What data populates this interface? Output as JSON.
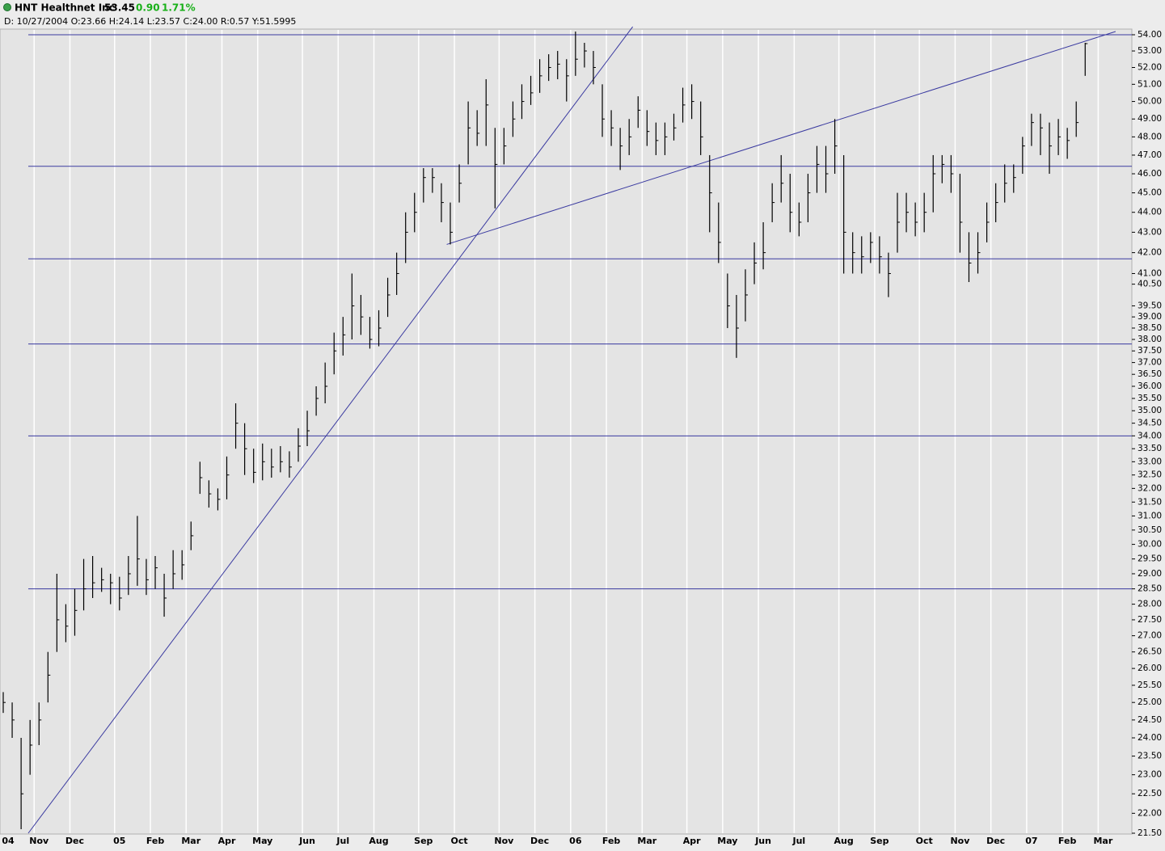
{
  "header": {
    "name": "HNT Healthnet Inc",
    "last": "53.45",
    "change": "0.90",
    "change_pct": "1.71%",
    "info": "D: 10/27/2004 O:23.66 H:24.14 L:23.57 C:24.00 R:0.57 Y:51.5995"
  },
  "chart_data": {
    "type": "ohlc",
    "log_scale": true,
    "color": "#000000",
    "line_color": "#3a3aa0",
    "grid": true,
    "categories": [
      "04",
      null,
      null,
      null,
      "Nov",
      null,
      null,
      null,
      "Dec",
      null,
      null,
      null,
      null,
      "05",
      null,
      null,
      null,
      "Feb",
      null,
      null,
      null,
      "Mar",
      null,
      null,
      null,
      "Apr",
      null,
      null,
      null,
      "May",
      null,
      null,
      null,
      null,
      "Jun",
      null,
      null,
      null,
      "Jul",
      null,
      null,
      null,
      "Aug",
      null,
      null,
      null,
      null,
      "Sep",
      null,
      null,
      null,
      "Oct",
      null,
      null,
      null,
      null,
      "Nov",
      null,
      null,
      null,
      "Dec",
      null,
      null,
      null,
      "06",
      null,
      null,
      null,
      "Feb",
      null,
      null,
      null,
      "Mar",
      null,
      null,
      null,
      null,
      "Apr",
      null,
      null,
      null,
      "May",
      null,
      null,
      null,
      "Jun",
      null,
      null,
      null,
      "Jul",
      null,
      null,
      null,
      null,
      "Aug",
      null,
      null,
      null,
      "Sep",
      null,
      null,
      null,
      null,
      "Oct",
      null,
      null,
      null,
      "Nov",
      null,
      null,
      null,
      "Dec",
      null,
      null,
      null,
      "07",
      null,
      null,
      null,
      "Feb",
      null,
      null,
      null,
      "Mar",
      null,
      null
    ],
    "high": [
      25.3,
      25.0,
      24.0,
      24.5,
      25.0,
      26.5,
      29.0,
      28.0,
      28.5,
      29.5,
      29.6,
      29.2,
      29.0,
      28.9,
      29.6,
      31.0,
      29.5,
      29.6,
      29.0,
      29.8,
      29.8,
      30.8,
      33.0,
      32.3,
      32.0,
      33.2,
      35.3,
      34.5,
      33.5,
      33.7,
      33.5,
      33.6,
      33.4,
      34.3,
      35.0,
      36.0,
      37.0,
      38.3,
      39.0,
      41.0,
      40.0,
      39.0,
      39.3,
      40.8,
      42.0,
      44.0,
      45.0,
      46.3,
      46.3,
      45.5,
      44.5,
      46.5,
      50.0,
      49.5,
      51.3,
      48.5,
      48.5,
      50.0,
      51.0,
      51.5,
      52.5,
      52.8,
      53.0,
      52.5,
      54.2,
      53.5,
      53.0,
      51.0,
      49.5,
      48.5,
      49.0,
      50.3,
      49.5,
      48.8,
      48.8,
      49.3,
      50.8,
      51.0,
      50.0,
      47.0,
      44.5,
      41.0,
      40.0,
      41.2,
      42.5,
      43.5,
      45.5,
      47.0,
      46.0,
      44.5,
      46.0,
      47.5,
      47.5,
      49.0,
      47.0,
      43.0,
      42.8,
      43.0,
      42.8,
      42.0,
      45.0,
      45.0,
      44.5,
      45.0,
      47.0,
      47.0,
      47.0,
      46.0,
      43.0,
      43.0,
      44.5,
      45.5,
      46.5,
      46.5,
      48.0,
      49.3,
      49.3,
      48.8,
      49.0,
      48.5,
      50.0,
      53.5,
      null,
      null,
      null,
      null
    ],
    "low": [
      24.7,
      24.0,
      21.6,
      23.0,
      23.8,
      25.0,
      26.5,
      26.8,
      27.0,
      27.8,
      28.2,
      28.4,
      28.0,
      27.8,
      28.3,
      28.6,
      28.3,
      28.5,
      27.6,
      28.5,
      28.8,
      29.8,
      31.8,
      31.3,
      31.2,
      31.6,
      33.5,
      32.5,
      32.2,
      32.3,
      32.4,
      32.6,
      32.4,
      33.0,
      33.6,
      34.8,
      35.3,
      36.5,
      37.3,
      38.0,
      38.2,
      37.6,
      37.7,
      39.0,
      40.0,
      41.5,
      43.0,
      44.5,
      45.0,
      43.5,
      42.4,
      44.5,
      46.5,
      47.5,
      47.5,
      44.2,
      46.5,
      48.0,
      49.0,
      49.8,
      50.5,
      51.2,
      51.3,
      50.0,
      51.5,
      52.0,
      51.0,
      48.0,
      47.5,
      46.2,
      47.0,
      48.5,
      47.5,
      47.0,
      47.0,
      47.8,
      48.8,
      49.0,
      47.0,
      43.0,
      41.5,
      38.5,
      37.2,
      38.8,
      40.5,
      41.2,
      43.5,
      44.5,
      43.0,
      42.8,
      43.5,
      45.0,
      45.0,
      46.0,
      41.0,
      41.0,
      41.0,
      41.5,
      41.0,
      39.9,
      42.0,
      43.0,
      42.8,
      43.0,
      44.0,
      45.5,
      45.0,
      42.0,
      40.6,
      41.0,
      42.5,
      43.5,
      44.5,
      45.0,
      46.0,
      47.5,
      47.0,
      46.0,
      47.0,
      46.8,
      48.0,
      51.5,
      null,
      null,
      null,
      null
    ],
    "close": [
      25.0,
      24.5,
      22.5,
      23.8,
      24.5,
      25.8,
      27.5,
      27.3,
      27.8,
      28.5,
      28.7,
      28.8,
      28.7,
      28.2,
      29.0,
      29.5,
      28.8,
      29.2,
      28.2,
      29.0,
      29.3,
      30.3,
      32.4,
      31.8,
      31.6,
      32.5,
      34.5,
      33.5,
      32.6,
      33.0,
      32.8,
      33.0,
      32.8,
      33.6,
      34.2,
      35.5,
      36.0,
      37.5,
      38.2,
      39.5,
      39.0,
      38.0,
      38.5,
      40.0,
      41.0,
      43.0,
      44.0,
      45.8,
      45.8,
      44.5,
      43.0,
      45.5,
      48.5,
      48.2,
      49.8,
      46.5,
      47.5,
      49.0,
      50.0,
      50.5,
      51.5,
      52.0,
      52.2,
      51.5,
      52.5,
      53.0,
      52.0,
      49.0,
      48.5,
      47.5,
      48.0,
      49.5,
      48.3,
      47.8,
      48.0,
      48.5,
      49.8,
      50.0,
      48.0,
      45.0,
      42.5,
      39.5,
      38.5,
      40.0,
      41.5,
      42.0,
      44.5,
      45.5,
      44.0,
      43.5,
      45.0,
      46.5,
      46.0,
      47.5,
      43.0,
      42.0,
      41.8,
      42.5,
      41.8,
      41.0,
      43.5,
      44.0,
      43.5,
      44.0,
      46.0,
      46.5,
      46.0,
      43.5,
      41.5,
      42.0,
      43.5,
      44.5,
      45.5,
      45.8,
      47.5,
      48.8,
      48.5,
      47.5,
      48.0,
      47.8,
      48.8,
      53.45,
      null,
      null,
      null,
      null
    ],
    "horizontal_lines": [
      54,
      46.4,
      41.7,
      37.8,
      34,
      28.5
    ],
    "trendlines": [
      {
        "x": [
          2.8,
          70.4
        ],
        "y": [
          21.5,
          54.5
        ]
      },
      {
        "x": [
          49.6,
          124.4
        ],
        "y": [
          42.4,
          54.2
        ]
      }
    ],
    "ylim": [
      21.5,
      54
    ],
    "yticks": [
      {
        "value": 54,
        "label": "54.00"
      },
      {
        "value": 53,
        "label": "53.00"
      },
      {
        "value": 52,
        "label": "52.00"
      },
      {
        "value": 51,
        "label": "51.00"
      },
      {
        "value": 50,
        "label": "50.00"
      },
      {
        "value": 49,
        "label": "49.00"
      },
      {
        "value": 48,
        "label": "48.00"
      },
      {
        "value": 47,
        "label": "47.00"
      },
      {
        "value": 46,
        "label": "46.00"
      },
      {
        "value": 45,
        "label": "45.00"
      },
      {
        "value": 44,
        "label": "44.00"
      },
      {
        "value": 43,
        "label": "43.00"
      },
      {
        "value": 42,
        "label": "42.00"
      },
      {
        "value": 41,
        "label": "41.00"
      },
      {
        "value": 40.5,
        "label": "40.50"
      },
      {
        "value": 39.5,
        "label": "39.50"
      },
      {
        "value": 39,
        "label": "39.00"
      },
      {
        "value": 38.5,
        "label": "38.50"
      },
      {
        "value": 38,
        "label": "38.00"
      },
      {
        "value": 37.5,
        "label": "37.50"
      },
      {
        "value": 37,
        "label": "37.00"
      },
      {
        "value": 36.5,
        "label": "36.50"
      },
      {
        "value": 36,
        "label": "36.00"
      },
      {
        "value": 35.5,
        "label": "35.50"
      },
      {
        "value": 35,
        "label": "35.00"
      },
      {
        "value": 34.5,
        "label": "34.50"
      },
      {
        "value": 34,
        "label": "34.00"
      },
      {
        "value": 33.5,
        "label": "33.50"
      },
      {
        "value": 33,
        "label": "33.00"
      },
      {
        "value": 32.5,
        "label": "32.50"
      },
      {
        "value": 32,
        "label": "32.00"
      },
      {
        "value": 31.5,
        "label": "31.50"
      },
      {
        "value": 31,
        "label": "31.00"
      },
      {
        "value": 30.5,
        "label": "30.50"
      },
      {
        "value": 30,
        "label": "30.00"
      },
      {
        "value": 29.5,
        "label": "29.50"
      },
      {
        "value": 29,
        "label": "29.00"
      },
      {
        "value": 28.5,
        "label": "28.50"
      },
      {
        "value": 28,
        "label": "28.00"
      },
      {
        "value": 27.5,
        "label": "27.50"
      },
      {
        "value": 27,
        "label": "27.00"
      },
      {
        "value": 26.5,
        "label": "26.50"
      },
      {
        "value": 26,
        "label": "26.00"
      },
      {
        "value": 25.5,
        "label": "25.50"
      },
      {
        "value": 25,
        "label": "25.00"
      },
      {
        "value": 24.5,
        "label": "24.50"
      },
      {
        "value": 24,
        "label": "24.00"
      },
      {
        "value": 23.5,
        "label": "23.50"
      },
      {
        "value": 23,
        "label": "23.00"
      },
      {
        "value": 22.5,
        "label": "22.50"
      },
      {
        "value": 22,
        "label": "22.00"
      },
      {
        "value": 21.5,
        "label": "21.50"
      }
    ]
  }
}
